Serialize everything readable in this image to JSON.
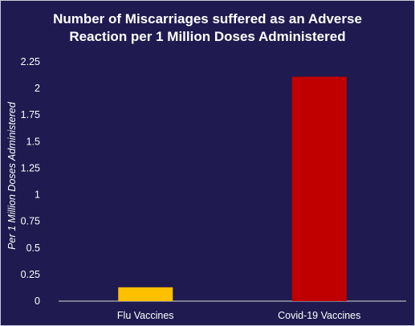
{
  "chart_data": {
    "type": "bar",
    "title_lines": [
      "Number of Miscarriages suffered as an Adverse",
      "Reaction per 1 Million Doses Administered"
    ],
    "xlabel": "",
    "ylabel": "Per 1 Million Doses Administered",
    "categories": [
      "Flu Vaccines",
      "Covid-19 Vaccines"
    ],
    "values": [
      0.13,
      2.11
    ],
    "bar_colors": [
      "#ffc000",
      "#c00000"
    ],
    "ylim": [
      0,
      2.25
    ],
    "yticks": [
      0,
      0.25,
      0.5,
      0.75,
      1,
      1.25,
      1.5,
      1.75,
      2,
      2.25
    ],
    "ytick_labels": [
      "0",
      "0.25",
      "0.5",
      "0.75",
      "1",
      "1.25",
      "1.5",
      "1.75",
      "2",
      "2.25"
    ],
    "grid": false,
    "legend": "none",
    "background_color": "#1f1a4f",
    "text_color": "#ffffff"
  }
}
